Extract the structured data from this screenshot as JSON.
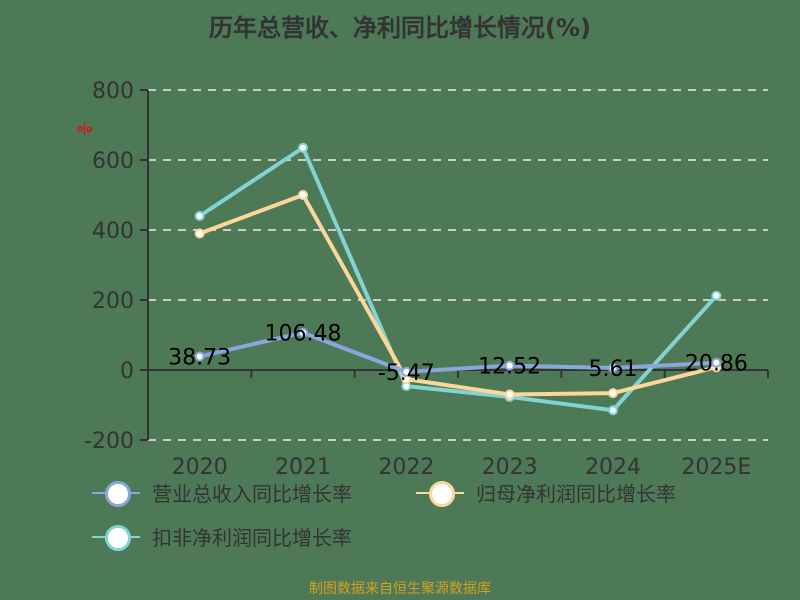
{
  "title": "历年总营收、净利同比增长情况(%)",
  "unit_label": "%",
  "footer": "制图数据来自恒生聚源数据库",
  "colors": {
    "revenue": "#8aa6dc",
    "net_profit": "#fcd79a",
    "deducted_profit": "#83d3d3",
    "background": "#4e7957"
  },
  "legend": [
    {
      "label": "营业总收入同比增长率",
      "color": "#8aa6dc"
    },
    {
      "label": "归母净利润同比增长率",
      "color": "#fcd79a"
    },
    {
      "label": "扣非净利润同比增长率",
      "color": "#83d3d3"
    }
  ],
  "chart_data": {
    "type": "line",
    "title": "历年总营收、净利同比增长情况(%)",
    "xlabel": "",
    "ylabel": "%",
    "categories": [
      "2020",
      "2021",
      "2022",
      "2023",
      "2024",
      "2025E"
    ],
    "ylim": [
      -200,
      800
    ],
    "yticks": [
      -200,
      0,
      200,
      400,
      600,
      800
    ],
    "grid": true,
    "legend_position": "bottom",
    "series": [
      {
        "name": "营业总收入同比增长率",
        "values": [
          38.73,
          106.48,
          -5.47,
          12.52,
          5.61,
          20.86
        ],
        "labeled": true
      },
      {
        "name": "归母净利润同比增长率",
        "values": [
          390,
          500,
          -26,
          -70,
          -66,
          8
        ]
      },
      {
        "name": "扣非净利润同比增长率",
        "values": [
          440,
          635,
          -46,
          -77,
          -115,
          212
        ]
      }
    ],
    "data_labels": [
      "38.73",
      "106.48",
      "-5.47",
      "12.52",
      "5.61",
      "20.86"
    ]
  }
}
